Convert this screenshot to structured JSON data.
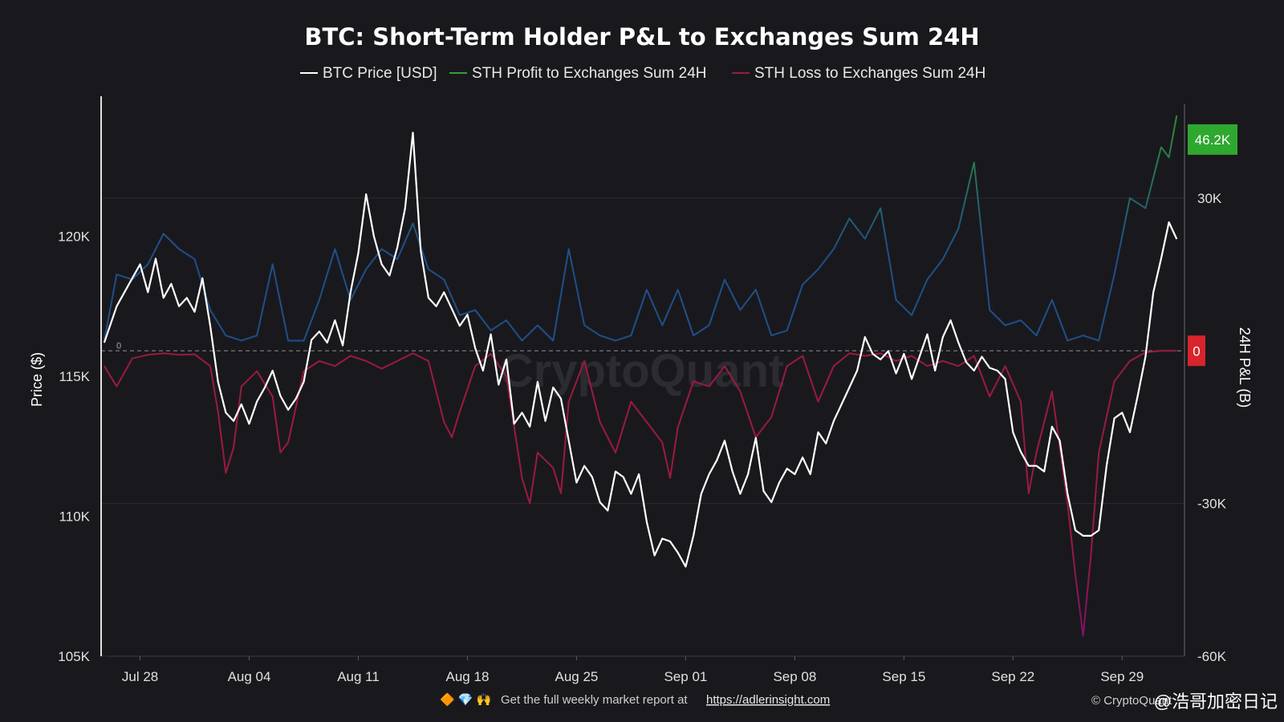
{
  "chart_data": {
    "type": "line",
    "title": "BTC: Short-Term Holder P&L to Exchanges Sum 24H",
    "y_left": {
      "label": "Price ($)",
      "min": 105000,
      "max": 125000,
      "ticks": [
        {
          "v": 105000,
          "t": "105K"
        },
        {
          "v": 110000,
          "t": "110K"
        },
        {
          "v": 115000,
          "t": "115K"
        },
        {
          "v": 120000,
          "t": "120K"
        }
      ]
    },
    "y_right": {
      "label": "24H P&L (B)",
      "min": -60000,
      "max": 50000,
      "ticks": [
        {
          "v": -60000,
          "t": "-60K"
        },
        {
          "v": -30000,
          "t": "-30K"
        },
        {
          "v": 30000,
          "t": "30K"
        }
      ]
    },
    "x_ticks": [
      "Jul 28",
      "Aug 04",
      "Aug 11",
      "Aug 18",
      "Aug 25",
      "Sep 01",
      "Sep 08",
      "Sep 15",
      "Sep 22",
      "Sep 29"
    ],
    "x_range_days": [
      -2.5,
      67
    ],
    "series": [
      {
        "name": "BTC Price [USD]",
        "axis": "left",
        "color": "#ffffff",
        "points": [
          [
            -2.3,
            116200
          ],
          [
            -1.5,
            117500
          ],
          [
            -0.5,
            118500
          ],
          [
            0,
            119000
          ],
          [
            0.5,
            118000
          ],
          [
            1,
            119200
          ],
          [
            1.5,
            117800
          ],
          [
            2,
            118300
          ],
          [
            2.5,
            117500
          ],
          [
            3,
            117800
          ],
          [
            3.5,
            117300
          ],
          [
            4,
            118500
          ],
          [
            4.5,
            116800
          ],
          [
            5,
            114800
          ],
          [
            5.5,
            113700
          ],
          [
            6,
            113400
          ],
          [
            6.5,
            114000
          ],
          [
            7,
            113300
          ],
          [
            7.5,
            114100
          ],
          [
            8,
            114600
          ],
          [
            8.5,
            115200
          ],
          [
            9,
            114300
          ],
          [
            9.5,
            113800
          ],
          [
            10,
            114200
          ],
          [
            10.5,
            114800
          ],
          [
            11,
            116300
          ],
          [
            11.5,
            116600
          ],
          [
            12,
            116200
          ],
          [
            12.5,
            117000
          ],
          [
            13,
            116100
          ],
          [
            13.5,
            118000
          ],
          [
            14,
            119400
          ],
          [
            14.5,
            121500
          ],
          [
            15,
            120000
          ],
          [
            15.5,
            119000
          ],
          [
            16,
            118600
          ],
          [
            16.5,
            119600
          ],
          [
            17,
            121000
          ],
          [
            17.5,
            123700
          ],
          [
            18,
            119500
          ],
          [
            18.5,
            117800
          ],
          [
            19,
            117500
          ],
          [
            19.5,
            118000
          ],
          [
            20,
            117400
          ],
          [
            20.5,
            116800
          ],
          [
            21,
            117200
          ],
          [
            21.5,
            116000
          ],
          [
            22,
            115200
          ],
          [
            22.5,
            116500
          ],
          [
            23,
            114700
          ],
          [
            23.5,
            115600
          ],
          [
            24,
            113300
          ],
          [
            24.5,
            113700
          ],
          [
            25,
            113200
          ],
          [
            25.5,
            114800
          ],
          [
            26,
            113400
          ],
          [
            26.5,
            114600
          ],
          [
            27,
            114200
          ],
          [
            27.5,
            112700
          ],
          [
            28,
            111200
          ],
          [
            28.5,
            111800
          ],
          [
            29,
            111400
          ],
          [
            29.5,
            110500
          ],
          [
            30,
            110200
          ],
          [
            30.5,
            111600
          ],
          [
            31,
            111400
          ],
          [
            31.5,
            110800
          ],
          [
            32,
            111500
          ],
          [
            32.5,
            109800
          ],
          [
            33,
            108600
          ],
          [
            33.5,
            109200
          ],
          [
            34,
            109100
          ],
          [
            34.5,
            108700
          ],
          [
            35,
            108200
          ],
          [
            35.5,
            109300
          ],
          [
            36,
            110800
          ],
          [
            36.5,
            111500
          ],
          [
            37,
            112000
          ],
          [
            37.5,
            112700
          ],
          [
            38,
            111600
          ],
          [
            38.5,
            110800
          ],
          [
            39,
            111500
          ],
          [
            39.5,
            112800
          ],
          [
            40,
            110900
          ],
          [
            40.5,
            110500
          ],
          [
            41,
            111200
          ],
          [
            41.5,
            111700
          ],
          [
            42,
            111500
          ],
          [
            42.5,
            112100
          ],
          [
            43,
            111500
          ],
          [
            43.5,
            113000
          ],
          [
            44,
            112600
          ],
          [
            44.5,
            113400
          ],
          [
            45,
            114000
          ],
          [
            45.5,
            114600
          ],
          [
            46,
            115200
          ],
          [
            46.5,
            116400
          ],
          [
            47,
            115800
          ],
          [
            47.5,
            115600
          ],
          [
            48,
            115900
          ],
          [
            48.5,
            115100
          ],
          [
            49,
            115800
          ],
          [
            49.5,
            114900
          ],
          [
            50,
            115700
          ],
          [
            50.5,
            116500
          ],
          [
            51,
            115200
          ],
          [
            51.5,
            116400
          ],
          [
            52,
            117000
          ],
          [
            52.5,
            116200
          ],
          [
            53,
            115500
          ],
          [
            53.5,
            115200
          ],
          [
            54,
            115700
          ],
          [
            54.5,
            115300
          ],
          [
            55,
            115200
          ],
          [
            55.5,
            114900
          ],
          [
            56,
            113000
          ],
          [
            56.5,
            112300
          ],
          [
            57,
            111800
          ],
          [
            57.5,
            111800
          ],
          [
            58,
            111600
          ],
          [
            58.5,
            113200
          ],
          [
            59,
            112700
          ],
          [
            59.5,
            110800
          ],
          [
            60,
            109500
          ],
          [
            60.5,
            109300
          ],
          [
            61,
            109300
          ],
          [
            61.5,
            109500
          ],
          [
            62,
            111800
          ],
          [
            62.5,
            113500
          ],
          [
            63,
            113700
          ],
          [
            63.5,
            113000
          ],
          [
            64,
            114300
          ],
          [
            64.5,
            115700
          ],
          [
            65,
            118000
          ],
          [
            65.5,
            119200
          ],
          [
            66,
            120500
          ],
          [
            66.5,
            119900
          ]
        ]
      },
      {
        "name": "STH Profit to Exchanges Sum 24H",
        "axis": "right",
        "color": "#3a9c3a",
        "points": [
          [
            -2.3,
            2000
          ],
          [
            -1.5,
            15000
          ],
          [
            -0.5,
            14000
          ],
          [
            0.5,
            17000
          ],
          [
            1.5,
            23000
          ],
          [
            2.5,
            20000
          ],
          [
            3.5,
            18000
          ],
          [
            4.5,
            8000
          ],
          [
            5.5,
            3000
          ],
          [
            6.5,
            2000
          ],
          [
            7.5,
            3000
          ],
          [
            8.5,
            17000
          ],
          [
            9.5,
            2000
          ],
          [
            10.5,
            2000
          ],
          [
            11.5,
            10000
          ],
          [
            12.5,
            20000
          ],
          [
            13.5,
            10000
          ],
          [
            14.5,
            16000
          ],
          [
            15.5,
            20000
          ],
          [
            16.5,
            18000
          ],
          [
            17.5,
            25000
          ],
          [
            18.5,
            16000
          ],
          [
            19.5,
            14000
          ],
          [
            20.5,
            7000
          ],
          [
            21.5,
            8000
          ],
          [
            22.5,
            4000
          ],
          [
            23.5,
            6000
          ],
          [
            24.5,
            2000
          ],
          [
            25.5,
            5000
          ],
          [
            26.5,
            2000
          ],
          [
            27.5,
            20000
          ],
          [
            28.5,
            5000
          ],
          [
            29.5,
            3000
          ],
          [
            30.5,
            2000
          ],
          [
            31.5,
            3000
          ],
          [
            32.5,
            12000
          ],
          [
            33.5,
            5000
          ],
          [
            34.5,
            12000
          ],
          [
            35.5,
            3000
          ],
          [
            36.5,
            5000
          ],
          [
            37.5,
            14000
          ],
          [
            38.5,
            8000
          ],
          [
            39.5,
            12000
          ],
          [
            40.5,
            3000
          ],
          [
            41.5,
            4000
          ],
          [
            42.5,
            13000
          ],
          [
            43.5,
            16000
          ],
          [
            44.5,
            20000
          ],
          [
            45.5,
            26000
          ],
          [
            46.5,
            22000
          ],
          [
            47.5,
            28000
          ],
          [
            48.5,
            10000
          ],
          [
            49.5,
            7000
          ],
          [
            50.5,
            14000
          ],
          [
            51.5,
            18000
          ],
          [
            52.5,
            24000
          ],
          [
            53.5,
            37000
          ],
          [
            54.5,
            8000
          ],
          [
            55.5,
            5000
          ],
          [
            56.5,
            6000
          ],
          [
            57.5,
            3000
          ],
          [
            58.5,
            10000
          ],
          [
            59.5,
            2000
          ],
          [
            60.5,
            3000
          ],
          [
            61.5,
            2000
          ],
          [
            62.5,
            15000
          ],
          [
            63.5,
            30000
          ],
          [
            64.5,
            28000
          ],
          [
            65.5,
            40000
          ],
          [
            66,
            38000
          ],
          [
            66.5,
            46200
          ]
        ]
      },
      {
        "name": "STH Loss to Exchanges Sum 24H",
        "axis": "right",
        "color": "#9b1a3e",
        "points": [
          [
            -2.3,
            -3000
          ],
          [
            -1.5,
            -7000
          ],
          [
            -0.5,
            -1500
          ],
          [
            0.5,
            -800
          ],
          [
            1.5,
            -500
          ],
          [
            2.5,
            -800
          ],
          [
            3.5,
            -700
          ],
          [
            4.5,
            -3000
          ],
          [
            5,
            -12000
          ],
          [
            5.5,
            -24000
          ],
          [
            6,
            -19000
          ],
          [
            6.5,
            -7000
          ],
          [
            7.5,
            -4000
          ],
          [
            8.5,
            -9000
          ],
          [
            9,
            -20000
          ],
          [
            9.5,
            -18000
          ],
          [
            10.5,
            -4000
          ],
          [
            11.5,
            -2000
          ],
          [
            12.5,
            -3000
          ],
          [
            13.5,
            -1000
          ],
          [
            14.5,
            -2000
          ],
          [
            15.5,
            -3500
          ],
          [
            16.5,
            -2000
          ],
          [
            17.5,
            -500
          ],
          [
            18.5,
            -2000
          ],
          [
            19.5,
            -14000
          ],
          [
            20,
            -17000
          ],
          [
            20.5,
            -12000
          ],
          [
            21.5,
            -3000
          ],
          [
            22.5,
            -600
          ],
          [
            23.5,
            -5000
          ],
          [
            24.5,
            -25000
          ],
          [
            25,
            -30000
          ],
          [
            25.5,
            -20000
          ],
          [
            26.5,
            -23000
          ],
          [
            27,
            -28000
          ],
          [
            27.5,
            -10000
          ],
          [
            28.5,
            -2000
          ],
          [
            29.5,
            -14000
          ],
          [
            30.5,
            -20000
          ],
          [
            31,
            -15000
          ],
          [
            31.5,
            -10000
          ],
          [
            32.5,
            -14000
          ],
          [
            33.5,
            -18000
          ],
          [
            34,
            -25000
          ],
          [
            34.5,
            -15000
          ],
          [
            35.5,
            -6000
          ],
          [
            36.5,
            -7000
          ],
          [
            37.5,
            -3000
          ],
          [
            38.5,
            -8000
          ],
          [
            39.5,
            -17000
          ],
          [
            40.5,
            -13000
          ],
          [
            41.5,
            -3000
          ],
          [
            42.5,
            -1000
          ],
          [
            43.5,
            -10000
          ],
          [
            44.5,
            -3000
          ],
          [
            45.5,
            -500
          ],
          [
            46.5,
            -1000
          ],
          [
            47.5,
            -500
          ],
          [
            48.5,
            -2000
          ],
          [
            49.5,
            -1000
          ],
          [
            50.5,
            -3000
          ],
          [
            51.5,
            -2000
          ],
          [
            52.5,
            -3000
          ],
          [
            53.5,
            -1000
          ],
          [
            54.5,
            -9000
          ],
          [
            55.5,
            -3000
          ],
          [
            56.5,
            -10000
          ],
          [
            57,
            -28000
          ],
          [
            57.5,
            -20000
          ],
          [
            58.5,
            -8000
          ],
          [
            59.5,
            -30000
          ],
          [
            60,
            -44000
          ],
          [
            60.5,
            -56000
          ],
          [
            61,
            -40000
          ],
          [
            61.5,
            -20000
          ],
          [
            62.5,
            -6000
          ],
          [
            63.5,
            -2000
          ],
          [
            64.5,
            -300
          ],
          [
            65.5,
            0
          ],
          [
            66.5,
            0
          ]
        ]
      }
    ],
    "last_values": {
      "profit": "46.2K",
      "loss": "0"
    },
    "left_zero_marker": "0"
  },
  "legend": [
    {
      "label": "BTC Price [USD]",
      "color": "#ffffff"
    },
    {
      "label": "STH Profit to Exchanges Sum 24H",
      "color": "#3a9c3a"
    },
    {
      "label": "STH Loss to Exchanges Sum 24H",
      "color": "#9b1a3e"
    }
  ],
  "colors": {
    "profit_low": "#1f4f8a",
    "profit_high": "#2f8a36",
    "loss_deep": "#7a1070",
    "background": "#19191d"
  },
  "watermark": "CryptoQuant",
  "footer": {
    "text": "Get the full weekly market report at",
    "link": "https://adlerinsight.com",
    "icons": "🔶 💎 🙌"
  },
  "copyright": "© CryptoQuant",
  "corner_watermark": "@浩哥加密日记"
}
